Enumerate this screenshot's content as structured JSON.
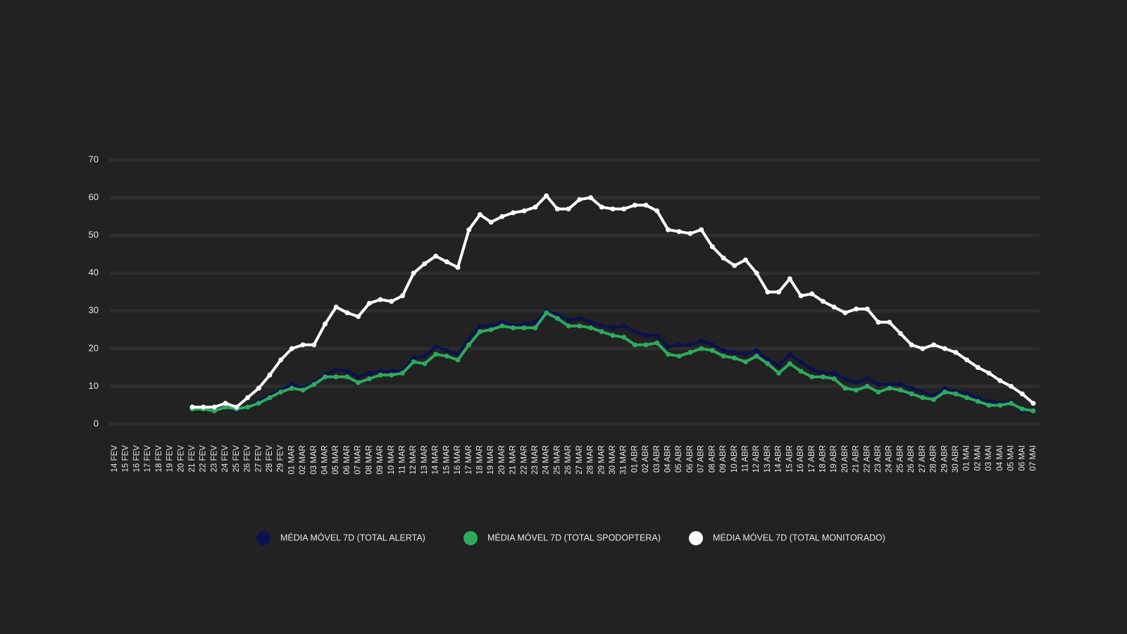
{
  "chart_data": {
    "type": "line",
    "categories": [
      "14 FEV",
      "15 FEV",
      "16 FEV",
      "17 FEV",
      "18 FEV",
      "19 FEV",
      "20 FEV",
      "21 FEV",
      "22 FEV",
      "23 FEV",
      "24 FEV",
      "25 FEV",
      "26 FEV",
      "27 FEV",
      "28 FEV",
      "29 FEV",
      "01 MAR",
      "02 MAR",
      "03 MAR",
      "04 MAR",
      "05 MAR",
      "06 MAR",
      "07 MAR",
      "08 MAR",
      "09 MAR",
      "10 MAR",
      "11 MAR",
      "12 MAR",
      "13 MAR",
      "14 MAR",
      "15 MAR",
      "16 MAR",
      "17 MAR",
      "18 MAR",
      "19 MAR",
      "20 MAR",
      "21 MAR",
      "22 MAR",
      "23 MAR",
      "24 MAR",
      "25 MAR",
      "26 MAR",
      "27 MAR",
      "28 MAR",
      "29 MAR",
      "30 MAR",
      "31 MAR",
      "01 ABR",
      "02 ABR",
      "03 ABR",
      "04 ABR",
      "05 ABR",
      "06 ABR",
      "07 ABR",
      "08 ABR",
      "09 ABR",
      "10 ABR",
      "11 ABR",
      "12 ABR",
      "13 ABR",
      "14 ABR",
      "15 ABR",
      "16 ABR",
      "17 ABR",
      "18 ABR",
      "19 ABR",
      "20 ABR",
      "21 ABR",
      "22 ABR",
      "23 ABR",
      "24 ABR",
      "25 ABR",
      "26 ABR",
      "27 ABR",
      "28 ABR",
      "29 ABR",
      "30 ABR",
      "01 MAI",
      "02 MAI",
      "03 MAI",
      "04 MAI",
      "05 MAI",
      "06 MAI",
      "07 MAI"
    ],
    "series": [
      {
        "name": "MÉDIA MÓVEL 7D (TOTAL ALERTA)",
        "color": "#0b1150",
        "values": [
          null,
          null,
          null,
          null,
          null,
          null,
          null,
          4.5,
          4.5,
          4,
          4.5,
          3.5,
          4.5,
          6,
          7.5,
          9,
          10.5,
          9.5,
          11,
          13,
          14.5,
          14,
          12.5,
          13.5,
          14,
          14,
          14,
          17.5,
          18,
          20.5,
          19.5,
          18.5,
          22.5,
          26,
          26,
          27,
          26,
          26.5,
          27,
          30,
          29,
          27.5,
          28,
          27,
          26,
          25.5,
          26,
          24.5,
          23.5,
          23.5,
          20.5,
          21,
          21,
          22,
          21,
          19.5,
          19,
          18.5,
          19.5,
          17,
          15.5,
          18.5,
          16.5,
          14.5,
          13.5,
          13.5,
          12,
          11,
          12,
          10.5,
          10.5,
          10.5,
          9.5,
          8.5,
          7.5,
          9.5,
          8.5,
          8,
          7,
          6,
          5.5,
          6,
          3.5,
          3.5
        ]
      },
      {
        "name": "MÉDIA MÓVEL 7D (TOTAL SPODOPTERA)",
        "color": "#2eaa5c",
        "values": [
          null,
          null,
          null,
          null,
          null,
          null,
          null,
          4,
          4,
          3.5,
          4.5,
          4,
          4.5,
          5.5,
          7,
          8.5,
          9.5,
          9,
          10.5,
          12.5,
          12.5,
          12.5,
          11,
          12,
          13,
          13,
          13.5,
          16.5,
          16,
          18.5,
          18,
          17,
          21,
          24.5,
          25,
          26,
          25.5,
          25.5,
          25.5,
          29.5,
          28,
          26,
          26,
          25.5,
          24.5,
          23.5,
          23,
          21,
          21,
          21.5,
          18.5,
          18,
          19,
          20,
          19.5,
          18,
          17.5,
          16.5,
          18,
          16,
          13.5,
          16,
          14,
          12.5,
          12.5,
          12,
          9.5,
          9,
          10,
          8.5,
          9.5,
          9,
          8,
          7,
          6.5,
          8.5,
          8,
          7,
          6,
          5,
          5,
          5.5,
          4,
          3.5
        ]
      },
      {
        "name": "MÉDIA MÓVEL 7D (TOTAL MONITORADO)",
        "color": "#ffffff",
        "values": [
          null,
          null,
          null,
          null,
          null,
          null,
          null,
          4.5,
          4.5,
          4.5,
          5.5,
          4.5,
          7,
          9.5,
          13,
          17,
          20,
          21,
          21,
          26.5,
          31,
          29.5,
          28.5,
          32,
          33,
          32.5,
          34,
          40,
          42.5,
          44.5,
          43,
          41.5,
          51.5,
          55.5,
          53.5,
          55,
          56,
          56.5,
          57.5,
          60.5,
          57,
          57,
          59.5,
          60,
          57.5,
          57,
          57,
          58,
          58,
          56.5,
          51.5,
          51,
          50.5,
          51.5,
          47,
          44,
          42,
          43.5,
          40,
          35,
          35,
          38.5,
          34,
          34.5,
          32.5,
          31,
          29.5,
          30.5,
          30.5,
          27,
          27,
          24,
          21,
          20,
          21,
          20,
          19,
          17,
          15,
          13.5,
          11.5,
          10,
          8,
          5.5
        ]
      }
    ],
    "ylim": [
      0,
      70
    ],
    "yticks": [
      0,
      10,
      20,
      30,
      40,
      50,
      60,
      70
    ],
    "grid": true
  }
}
